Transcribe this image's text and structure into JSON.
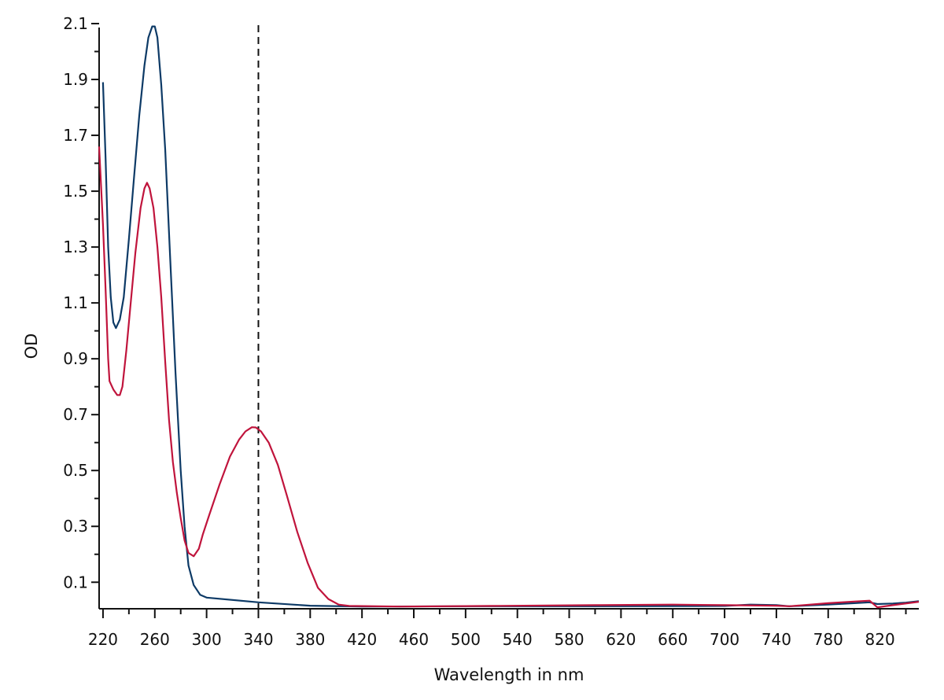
{
  "chart_data": {
    "type": "line",
    "title": "",
    "xlabel": "Wavelength in nm",
    "ylabel": "OD",
    "xlim": [
      217,
      850
    ],
    "ylim": [
      0.005,
      2.1
    ],
    "x_ticks": [
      "220",
      "260",
      "300",
      "340",
      "380",
      "420",
      "460",
      "500",
      "540",
      "580",
      "620",
      "660",
      "700",
      "740",
      "780",
      "820"
    ],
    "y_ticks": [
      "0.1",
      "0.3",
      "0.5",
      "0.7",
      "0.9",
      "1.1",
      "1.3",
      "1.5",
      "1.7",
      "1.9",
      "2.1"
    ],
    "grid": false,
    "legend": "none",
    "reference_line": {
      "x": 340,
      "style": "dashed"
    },
    "series": [
      {
        "color": "#0d3a66",
        "points": [
          [
            220,
            1.89
          ],
          [
            222,
            1.62
          ],
          [
            224,
            1.3
          ],
          [
            226,
            1.12
          ],
          [
            228,
            1.03
          ],
          [
            230,
            1.01
          ],
          [
            233,
            1.04
          ],
          [
            236,
            1.12
          ],
          [
            240,
            1.33
          ],
          [
            244,
            1.55
          ],
          [
            248,
            1.77
          ],
          [
            252,
            1.95
          ],
          [
            255,
            2.05
          ],
          [
            258,
            2.09
          ],
          [
            260,
            2.09
          ],
          [
            262,
            2.05
          ],
          [
            265,
            1.88
          ],
          [
            268,
            1.65
          ],
          [
            272,
            1.25
          ],
          [
            276,
            0.85
          ],
          [
            280,
            0.5
          ],
          [
            283,
            0.3
          ],
          [
            286,
            0.16
          ],
          [
            290,
            0.09
          ],
          [
            295,
            0.055
          ],
          [
            300,
            0.045
          ],
          [
            340,
            0.028
          ],
          [
            380,
            0.016
          ],
          [
            420,
            0.013
          ],
          [
            500,
            0.014
          ],
          [
            600,
            0.014
          ],
          [
            700,
            0.015
          ],
          [
            720,
            0.02
          ],
          [
            740,
            0.018
          ],
          [
            750,
            0.014
          ],
          [
            780,
            0.02
          ],
          [
            800,
            0.025
          ],
          [
            812,
            0.028
          ],
          [
            818,
            0.022
          ],
          [
            830,
            0.024
          ],
          [
            840,
            0.027
          ],
          [
            850,
            0.032
          ]
        ]
      },
      {
        "color": "#c0143c",
        "points": [
          [
            217,
            1.66
          ],
          [
            220,
            1.38
          ],
          [
            222,
            1.15
          ],
          [
            224,
            0.9
          ],
          [
            225,
            0.82
          ],
          [
            228,
            0.79
          ],
          [
            231,
            0.77
          ],
          [
            233,
            0.77
          ],
          [
            235,
            0.8
          ],
          [
            238,
            0.93
          ],
          [
            241,
            1.08
          ],
          [
            245,
            1.28
          ],
          [
            249,
            1.44
          ],
          [
            252,
            1.51
          ],
          [
            254,
            1.53
          ],
          [
            256,
            1.51
          ],
          [
            259,
            1.44
          ],
          [
            262,
            1.3
          ],
          [
            265,
            1.12
          ],
          [
            268,
            0.89
          ],
          [
            271,
            0.68
          ],
          [
            274,
            0.53
          ],
          [
            277,
            0.42
          ],
          [
            280,
            0.33
          ],
          [
            283,
            0.25
          ],
          [
            286,
            0.205
          ],
          [
            290,
            0.193
          ],
          [
            294,
            0.22
          ],
          [
            297,
            0.27
          ],
          [
            302,
            0.34
          ],
          [
            310,
            0.45
          ],
          [
            318,
            0.55
          ],
          [
            325,
            0.61
          ],
          [
            330,
            0.64
          ],
          [
            335,
            0.655
          ],
          [
            338,
            0.654
          ],
          [
            342,
            0.64
          ],
          [
            348,
            0.6
          ],
          [
            355,
            0.52
          ],
          [
            362,
            0.41
          ],
          [
            370,
            0.28
          ],
          [
            378,
            0.17
          ],
          [
            386,
            0.08
          ],
          [
            394,
            0.04
          ],
          [
            402,
            0.02
          ],
          [
            410,
            0.015
          ],
          [
            450,
            0.013
          ],
          [
            520,
            0.015
          ],
          [
            600,
            0.018
          ],
          [
            660,
            0.02
          ],
          [
            700,
            0.018
          ],
          [
            740,
            0.016
          ],
          [
            750,
            0.014
          ],
          [
            780,
            0.025
          ],
          [
            800,
            0.031
          ],
          [
            812,
            0.034
          ],
          [
            818,
            0.01
          ],
          [
            830,
            0.018
          ],
          [
            850,
            0.03
          ]
        ]
      }
    ]
  }
}
